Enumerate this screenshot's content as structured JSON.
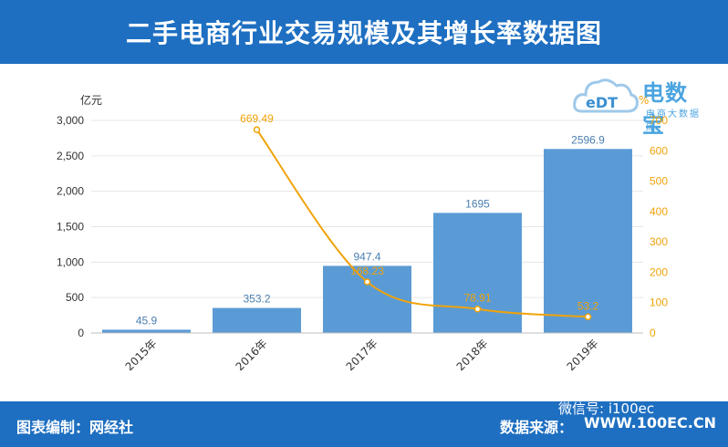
{
  "header": {
    "title": "二手电商行业交易规模及其增长率数据图"
  },
  "logo": {
    "brand": "电数宝",
    "abbr": "eDT",
    "subtitle": "电商大数据库"
  },
  "footer": {
    "credit": "图表编制：网经社",
    "source": "数据来源：",
    "website": "WWW.100EC.CN",
    "wechat": "微信号: i100ec"
  },
  "colors": {
    "header": "#1e6fc1",
    "bar": "#5b9bd5",
    "line": "#f0a30a"
  },
  "chart_data": {
    "type": "bar",
    "title": "二手电商行业交易规模及其增长率数据图",
    "ylabel": "亿元",
    "y2label": "%",
    "categories": [
      "2015年",
      "2016年",
      "2017年",
      "2018年",
      "2019年"
    ],
    "series": [
      {
        "name": "交易规模",
        "type": "bar",
        "axis": "left",
        "values": [
          45.9,
          353.2,
          947.4,
          1695,
          2596.9
        ],
        "labels": [
          "45.9",
          "353.2",
          "947.4",
          "1695",
          "2596.9"
        ]
      },
      {
        "name": "增长率",
        "type": "line",
        "axis": "right",
        "values": [
          null,
          669.49,
          168.23,
          78.91,
          53.2
        ],
        "labels": [
          "",
          "669.49",
          "168.23",
          "78.91",
          "53.2"
        ]
      }
    ],
    "ylim": [
      0,
      3000
    ],
    "yticks": [
      "0",
      "500",
      "1,000",
      "1,500",
      "2,000",
      "2,500",
      "3,000"
    ],
    "y2lim": [
      0,
      700
    ],
    "y2ticks": [
      "0",
      "100",
      "200",
      "300",
      "400",
      "500",
      "600",
      "700"
    ]
  }
}
